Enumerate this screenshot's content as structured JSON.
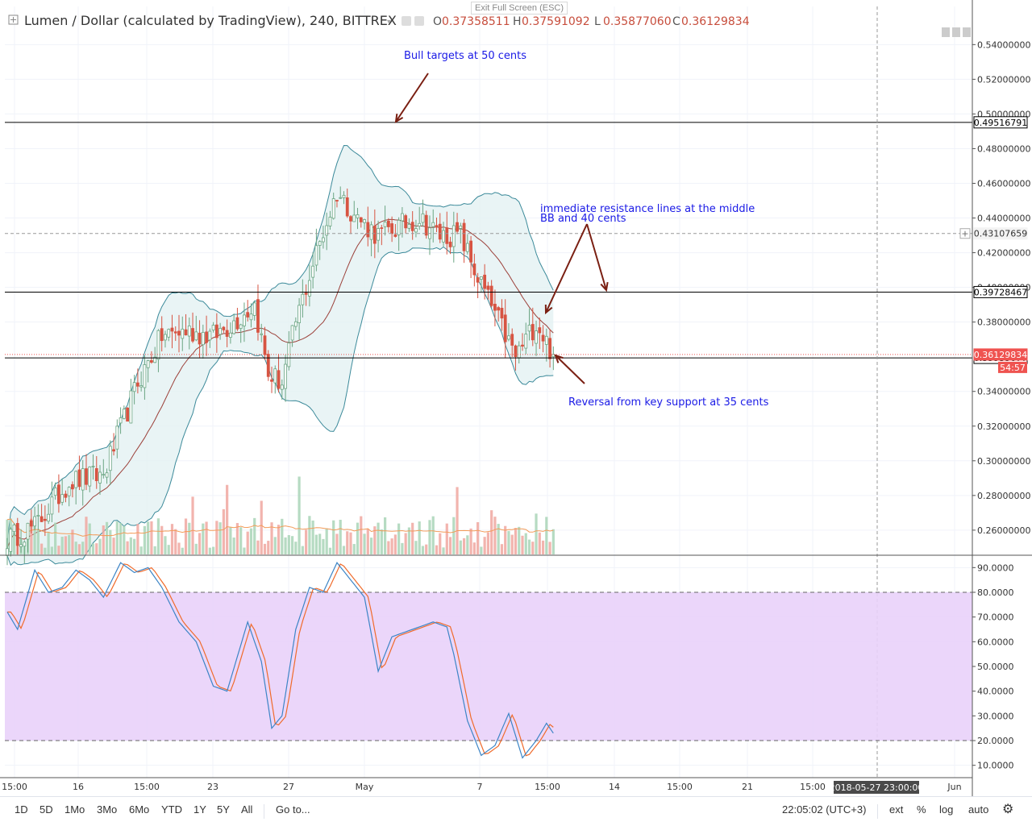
{
  "header": {
    "title": "Lumen / Dollar (calculated by TradingView), 240, BITTREX",
    "o_label": "O",
    "o_value": "0.37358511",
    "h_label": "H",
    "h_value": "0.37591092",
    "l_label": "L",
    "l_value": "0.35877060",
    "c_label": "C",
    "c_value": "0.36129834",
    "exit_fullscreen": "Exit Full Screen (ESC)"
  },
  "colors": {
    "up": "#6ba583",
    "down": "#d75442",
    "bb_band": "#3c8a9a",
    "bb_fill": "#e3f1f2",
    "bb_mid": "#9b3f38",
    "stoch_k": "#3d85c6",
    "stoch_d": "#f06b2b",
    "stoch_bg": "#e9d1f9",
    "annotation": "#1a1ae6",
    "arrow": "#7a1f12",
    "price_tag": "#ef5350",
    "hline": "#000000"
  },
  "chart_data": [
    {
      "type": "candlestick",
      "title": "Lumen / Dollar (calculated by TradingView), 240, BITTREX",
      "ylim": [
        0.246,
        0.562
      ],
      "y_ticks": [
        "0.54000000",
        "0.52000000",
        "0.50000000",
        "0.48000000",
        "0.46000000",
        "0.44000000",
        "0.42000000",
        "0.40000000",
        "0.38000000",
        "0.34000000",
        "0.32000000",
        "0.30000000",
        "0.28000000",
        "0.26000000"
      ],
      "x_tick_labels": [
        "15:00",
        "16",
        "15:00",
        "23",
        "27",
        "May",
        "7",
        "15:00",
        "14",
        "15:00",
        "21",
        "15:00",
        "Jun"
      ],
      "crosshair_time_label": "2018-05-27 23:00:00",
      "candle_count": 160,
      "price_path": [
        [
          0,
          0.255
        ],
        [
          8,
          0.262
        ],
        [
          18,
          0.288
        ],
        [
          28,
          0.292
        ],
        [
          38,
          0.345
        ],
        [
          45,
          0.372
        ],
        [
          52,
          0.375
        ],
        [
          60,
          0.372
        ],
        [
          66,
          0.38
        ],
        [
          72,
          0.39
        ],
        [
          76,
          0.35
        ],
        [
          80,
          0.345
        ],
        [
          84,
          0.38
        ],
        [
          90,
          0.42
        ],
        [
          96,
          0.455
        ],
        [
          102,
          0.44
        ],
        [
          108,
          0.43
        ],
        [
          114,
          0.435
        ],
        [
          120,
          0.44
        ],
        [
          126,
          0.43
        ],
        [
          132,
          0.43
        ],
        [
          136,
          0.41
        ],
        [
          142,
          0.385
        ],
        [
          148,
          0.36
        ],
        [
          154,
          0.38
        ],
        [
          159,
          0.361
        ]
      ],
      "horizontal_lines": [
        {
          "price": 0.49516791,
          "label": "0.49516791",
          "style": "solid"
        },
        {
          "price": 0.39728467,
          "label": "0.39728467",
          "style": "solid"
        },
        {
          "price": 0.35935077,
          "label": "0.35935077",
          "style": "solid"
        },
        {
          "price": 0.43107659,
          "label": "0.43107659",
          "style": "dashed"
        }
      ],
      "last_price": {
        "price": 0.36129834,
        "label": "0.36129834",
        "countdown": "54:57"
      },
      "indicators": [
        "Bollinger Bands",
        "Volume"
      ],
      "annotations": [
        {
          "text": "Bull targets at 50 cents"
        },
        {
          "text": "immediate resistance lines at the middle"
        },
        {
          "text": "BB and 40 cents"
        },
        {
          "text": "Reversal from key support at 35 cents"
        }
      ]
    },
    {
      "type": "line",
      "title": "Stochastic RSI",
      "ylim": [
        5,
        95
      ],
      "y_ticks": [
        "90.0000",
        "80.0000",
        "70.0000",
        "60.0000",
        "50.0000",
        "40.0000",
        "30.0000",
        "20.0000",
        "10.0000"
      ],
      "bands": [
        20,
        80
      ],
      "series": [
        {
          "values_path": [
            [
              0,
              72
            ],
            [
              3,
              65
            ],
            [
              8,
              89
            ],
            [
              12,
              80
            ],
            [
              16,
              82
            ],
            [
              20,
              89
            ],
            [
              24,
              85
            ],
            [
              28,
              78
            ],
            [
              33,
              92
            ],
            [
              37,
              88
            ],
            [
              41,
              90
            ],
            [
              45,
              82
            ],
            [
              50,
              68
            ],
            [
              55,
              60
            ],
            [
              60,
              42
            ],
            [
              64,
              40
            ],
            [
              70,
              68
            ],
            [
              74,
              52
            ],
            [
              77,
              25
            ],
            [
              80,
              30
            ],
            [
              84,
              65
            ],
            [
              88,
              82
            ],
            [
              92,
              80
            ],
            [
              96,
              92
            ],
            [
              100,
              85
            ],
            [
              104,
              78
            ],
            [
              108,
              48
            ],
            [
              112,
              62
            ],
            [
              116,
              64
            ],
            [
              120,
              66
            ],
            [
              124,
              68
            ],
            [
              128,
              66
            ],
            [
              130,
              55
            ],
            [
              134,
              28
            ],
            [
              138,
              14
            ],
            [
              142,
              18
            ],
            [
              146,
              31
            ],
            [
              150,
              13
            ],
            [
              154,
              20
            ],
            [
              157,
              27
            ],
            [
              159,
              23
            ]
          ]
        }
      ]
    }
  ],
  "bottom_bar": {
    "ranges": [
      "1D",
      "5D",
      "1Mo",
      "3Mo",
      "6Mo",
      "YTD",
      "1Y",
      "5Y",
      "All"
    ],
    "goto": "Go to...",
    "clock": "22:05:02 (UTC+3)",
    "ext": "ext",
    "percent": "%",
    "log": "log",
    "auto": "auto"
  }
}
